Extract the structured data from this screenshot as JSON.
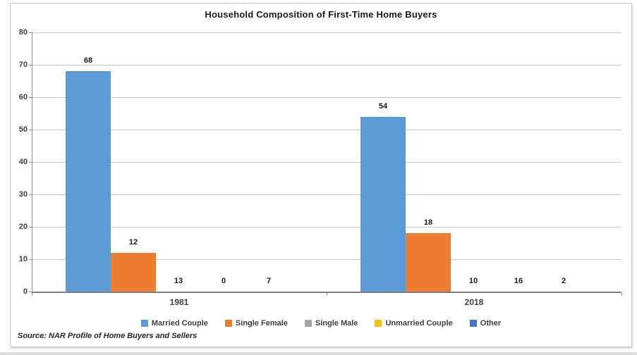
{
  "title": "Household Composition of First-Time Home Buyers",
  "source_note": "Source: NAR Profile of Home Buyers and Sellers",
  "chart_data": {
    "type": "bar",
    "title": "Household Composition of First-Time Home Buyers",
    "categories": [
      "1981",
      "2018"
    ],
    "series": [
      {
        "name": "Married Couple",
        "color": "#5B9BD5",
        "values": [
          68,
          54
        ]
      },
      {
        "name": "Single Female",
        "color": "#ED7D31",
        "values": [
          12,
          18
        ]
      },
      {
        "name": "Single Male",
        "color": "#A5A5A5",
        "values": [
          13,
          10
        ]
      },
      {
        "name": "Unmarried Couple",
        "color": "#FFC000",
        "values": [
          0,
          16
        ]
      },
      {
        "name": "Other",
        "color": "#4472C4",
        "values": [
          7,
          2
        ]
      }
    ],
    "xlabel": "",
    "ylabel": "",
    "ylim": [
      0,
      80
    ],
    "yticks": [
      0,
      10,
      20,
      30,
      40,
      50,
      60,
      70,
      80
    ],
    "grid": true,
    "data_labels": true,
    "legend_position": "bottom",
    "annotation": "Source: NAR Profile of Home Buyers and Sellers"
  }
}
